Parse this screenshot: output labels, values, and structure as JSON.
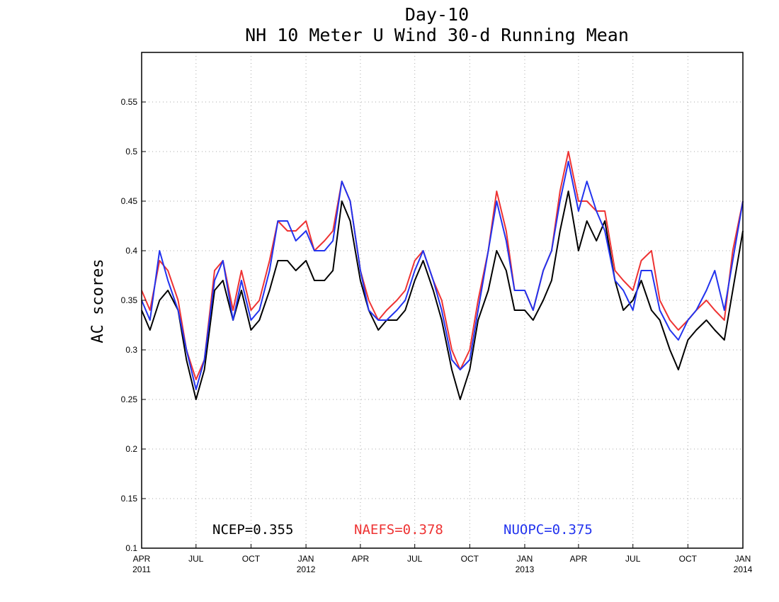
{
  "chart_data": {
    "type": "line",
    "title": "Day-10",
    "subtitle": "NH 10 Meter U Wind 30-d Running Mean",
    "ylabel": "AC scores",
    "xlim": [
      "2011-04-01",
      "2014-01-01"
    ],
    "ylim": [
      0.1,
      0.6
    ],
    "yticks": [
      0.1,
      0.15,
      0.2,
      0.25,
      0.3,
      0.35,
      0.4,
      0.45,
      0.5,
      0.55
    ],
    "xticks": [
      {
        "date": "2011-04-01",
        "label": "APR",
        "year": "2011"
      },
      {
        "date": "2011-07-01",
        "label": "JUL",
        "year": ""
      },
      {
        "date": "2011-10-01",
        "label": "OCT",
        "year": ""
      },
      {
        "date": "2012-01-01",
        "label": "JAN",
        "year": "2012"
      },
      {
        "date": "2012-04-01",
        "label": "APR",
        "year": ""
      },
      {
        "date": "2012-07-01",
        "label": "JUL",
        "year": ""
      },
      {
        "date": "2012-10-01",
        "label": "OCT",
        "year": ""
      },
      {
        "date": "2013-01-01",
        "label": "JAN",
        "year": "2013"
      },
      {
        "date": "2013-04-01",
        "label": "APR",
        "year": ""
      },
      {
        "date": "2013-07-01",
        "label": "JUL",
        "year": ""
      },
      {
        "date": "2013-10-01",
        "label": "OCT",
        "year": ""
      },
      {
        "date": "2014-01-01",
        "label": "JAN",
        "year": "2014"
      }
    ],
    "grid": true,
    "legend_position": "bottom",
    "x": [
      "2011-04-01",
      "2011-04-15",
      "2011-05-01",
      "2011-05-15",
      "2011-06-01",
      "2011-06-15",
      "2011-07-01",
      "2011-07-15",
      "2011-08-01",
      "2011-08-15",
      "2011-09-01",
      "2011-09-15",
      "2011-10-01",
      "2011-10-15",
      "2011-11-01",
      "2011-11-15",
      "2011-12-01",
      "2011-12-15",
      "2012-01-01",
      "2012-01-15",
      "2012-02-01",
      "2012-02-15",
      "2012-03-01",
      "2012-03-15",
      "2012-04-01",
      "2012-04-15",
      "2012-05-01",
      "2012-05-15",
      "2012-06-01",
      "2012-06-15",
      "2012-07-01",
      "2012-07-15",
      "2012-08-01",
      "2012-08-15",
      "2012-09-01",
      "2012-09-15",
      "2012-10-01",
      "2012-10-15",
      "2012-11-01",
      "2012-11-15",
      "2012-12-01",
      "2012-12-15",
      "2013-01-01",
      "2013-01-15",
      "2013-02-01",
      "2013-02-15",
      "2013-03-01",
      "2013-03-15",
      "2013-04-01",
      "2013-04-15",
      "2013-05-01",
      "2013-05-15",
      "2013-06-01",
      "2013-06-15",
      "2013-07-01",
      "2013-07-15",
      "2013-08-01",
      "2013-08-15",
      "2013-09-01",
      "2013-09-15",
      "2013-10-01",
      "2013-10-15",
      "2013-11-01",
      "2013-11-15",
      "2013-12-01",
      "2013-12-15",
      "2014-01-01"
    ],
    "series": [
      {
        "name": "NCEP",
        "legend": "NCEP=0.355",
        "color": "#000000",
        "values": [
          0.34,
          0.32,
          0.35,
          0.36,
          0.34,
          0.29,
          0.25,
          0.28,
          0.36,
          0.37,
          0.33,
          0.36,
          0.32,
          0.33,
          0.36,
          0.39,
          0.39,
          0.38,
          0.39,
          0.37,
          0.37,
          0.38,
          0.45,
          0.43,
          0.37,
          0.34,
          0.32,
          0.33,
          0.33,
          0.34,
          0.37,
          0.39,
          0.36,
          0.33,
          0.28,
          0.25,
          0.28,
          0.33,
          0.36,
          0.4,
          0.38,
          0.34,
          0.34,
          0.33,
          0.35,
          0.37,
          0.42,
          0.46,
          0.4,
          0.43,
          0.41,
          0.43,
          0.37,
          0.34,
          0.35,
          0.37,
          0.34,
          0.33,
          0.3,
          0.28,
          0.31,
          0.32,
          0.33,
          0.32,
          0.31,
          0.36,
          0.42
        ]
      },
      {
        "name": "NAEFS",
        "legend": "NAEFS=0.378",
        "color": "#ee3333",
        "values": [
          0.36,
          0.34,
          0.39,
          0.38,
          0.35,
          0.3,
          0.27,
          0.29,
          0.38,
          0.39,
          0.34,
          0.38,
          0.34,
          0.35,
          0.39,
          0.43,
          0.42,
          0.42,
          0.43,
          0.4,
          0.41,
          0.42,
          0.47,
          0.45,
          0.38,
          0.35,
          0.33,
          0.34,
          0.35,
          0.36,
          0.39,
          0.4,
          0.37,
          0.35,
          0.3,
          0.28,
          0.3,
          0.35,
          0.4,
          0.46,
          0.42,
          0.36,
          0.36,
          0.34,
          0.38,
          0.4,
          0.46,
          0.5,
          0.45,
          0.45,
          0.44,
          0.44,
          0.38,
          0.37,
          0.36,
          0.39,
          0.4,
          0.35,
          0.33,
          0.32,
          0.33,
          0.34,
          0.35,
          0.34,
          0.33,
          0.4,
          0.45
        ]
      },
      {
        "name": "NUOPC",
        "legend": "NUOPC=0.375",
        "color": "#2233ee",
        "values": [
          0.35,
          0.33,
          0.4,
          0.37,
          0.34,
          0.3,
          0.26,
          0.29,
          0.37,
          0.39,
          0.33,
          0.37,
          0.33,
          0.34,
          0.38,
          0.43,
          0.43,
          0.41,
          0.42,
          0.4,
          0.4,
          0.41,
          0.47,
          0.45,
          0.38,
          0.34,
          0.33,
          0.33,
          0.34,
          0.35,
          0.38,
          0.4,
          0.37,
          0.34,
          0.29,
          0.28,
          0.29,
          0.34,
          0.4,
          0.45,
          0.41,
          0.36,
          0.36,
          0.34,
          0.38,
          0.4,
          0.45,
          0.49,
          0.44,
          0.47,
          0.44,
          0.42,
          0.37,
          0.36,
          0.34,
          0.38,
          0.38,
          0.34,
          0.32,
          0.31,
          0.33,
          0.34,
          0.36,
          0.38,
          0.34,
          0.39,
          0.45
        ]
      }
    ]
  }
}
